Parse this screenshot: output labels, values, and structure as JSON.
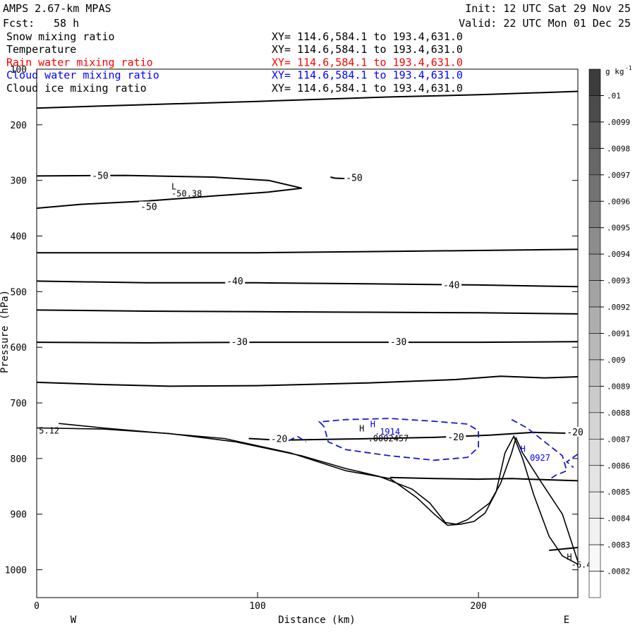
{
  "header": {
    "model": "AMPS 2.67-km MPAS",
    "fcst_label": "Fcst:",
    "fcst_value": "58 h",
    "init": "Init: 12 UTC Sat 29 Nov 25",
    "valid": "Valid: 22 UTC Mon 01 Dec 25"
  },
  "fields": [
    {
      "name": "Snow mixing ratio",
      "xy": "XY= 114.6,584.1 to 193.4,631.0",
      "color": "#000000"
    },
    {
      "name": "Temperature",
      "xy": "XY= 114.6,584.1 to 193.4,631.0",
      "color": "#000000"
    },
    {
      "name": "Rain water mixing ratio",
      "xy": "XY= 114.6,584.1 to 193.4,631.0",
      "color": "#ff0000"
    },
    {
      "name": "Cloud water mixing ratio",
      "xy": "XY= 114.6,584.1 to 193.4,631.0",
      "color": "#0000ff"
    },
    {
      "name": "Cloud ice mixing ratio",
      "xy": "XY= 114.6,584.1 to 193.4,631.0",
      "color": "#000000"
    }
  ],
  "chart_data": {
    "type": "contour",
    "xlabel": "Distance (km)",
    "ylabel": "Pressure (hPa)",
    "xlim": [
      0,
      245
    ],
    "ylim": [
      100,
      1050
    ],
    "x_ticks": [
      0,
      100,
      200
    ],
    "y_ticks": [
      100,
      200,
      300,
      400,
      500,
      600,
      700,
      800,
      900,
      1000
    ],
    "direction_labels": {
      "left": "W",
      "right": "E"
    },
    "temperature_contours": [
      {
        "label": "",
        "points": [
          [
            0,
            170
          ],
          [
            40,
            165
          ],
          [
            100,
            158
          ],
          [
            160,
            150
          ],
          [
            200,
            146
          ],
          [
            245,
            140
          ]
        ]
      },
      {
        "label": "-50",
        "label_at": [
          25,
          292
        ],
        "points": [
          [
            0,
            292
          ],
          [
            40,
            291
          ],
          [
            80,
            294
          ],
          [
            105,
            300
          ],
          [
            120,
            314
          ],
          [
            105,
            321
          ],
          [
            80,
            328
          ],
          [
            50,
            337
          ],
          [
            20,
            343
          ],
          [
            0,
            350
          ]
        ]
      },
      {
        "label": "-50",
        "label_at": [
          47,
          348
        ],
        "points": []
      },
      {
        "label": "-50",
        "label_at": [
          140,
          296
        ],
        "points": [
          [
            133,
            294
          ],
          [
            135,
            296
          ],
          [
            141,
            297
          ],
          [
            148,
            297
          ]
        ]
      },
      {
        "label": "",
        "points": [
          [
            0,
            430
          ],
          [
            50,
            430
          ],
          [
            100,
            430
          ],
          [
            150,
            428
          ],
          [
            200,
            426
          ],
          [
            245,
            424
          ]
        ]
      },
      {
        "label": "-40",
        "label_at": [
          86,
          482
        ],
        "points": [
          [
            0,
            481
          ],
          [
            50,
            484
          ],
          [
            100,
            484
          ],
          [
            150,
            486
          ],
          [
            200,
            488
          ],
          [
            245,
            491
          ]
        ]
      },
      {
        "label": "-40",
        "label_at": [
          184,
          489
        ],
        "points": []
      },
      {
        "label": "",
        "points": [
          [
            0,
            533
          ],
          [
            50,
            535
          ],
          [
            100,
            536
          ],
          [
            150,
            537
          ],
          [
            200,
            538
          ],
          [
            245,
            540
          ]
        ]
      },
      {
        "label": "-30",
        "label_at": [
          88,
          591
        ],
        "points": [
          [
            0,
            591
          ],
          [
            50,
            592
          ],
          [
            100,
            591
          ],
          [
            150,
            591
          ],
          [
            200,
            591
          ],
          [
            245,
            590
          ]
        ]
      },
      {
        "label": "-30",
        "label_at": [
          160,
          591
        ],
        "points": []
      },
      {
        "label": "",
        "points": [
          [
            0,
            663
          ],
          [
            30,
            667
          ],
          [
            60,
            670
          ],
          [
            100,
            669
          ],
          [
            150,
            664
          ],
          [
            190,
            658
          ],
          [
            210,
            652
          ],
          [
            230,
            655
          ],
          [
            245,
            653
          ]
        ]
      },
      {
        "label": "-20",
        "label_at": [
          106,
          765
        ],
        "points": [
          [
            96,
            764
          ],
          [
            110,
            767
          ],
          [
            140,
            765
          ],
          [
            180,
            762
          ],
          [
            205,
            758
          ],
          [
            225,
            753
          ],
          [
            245,
            755
          ]
        ]
      },
      {
        "label": "-20",
        "label_at": [
          186,
          762
        ],
        "points": []
      },
      {
        "label": "-20",
        "label_at": [
          240,
          753
        ],
        "points": []
      },
      {
        "label": "",
        "points": [
          [
            160,
            834
          ],
          [
            180,
            836
          ],
          [
            200,
            837
          ],
          [
            215,
            836
          ],
          [
            230,
            838
          ],
          [
            245,
            840
          ]
        ]
      },
      {
        "label": "",
        "points": [
          [
            232,
            965
          ],
          [
            245,
            960
          ]
        ]
      }
    ],
    "terrain": [
      {
        "name": "surface-pressure-line",
        "points": [
          [
            0,
            745
          ],
          [
            30,
            747
          ],
          [
            60,
            755
          ],
          [
            90,
            770
          ],
          [
            120,
            795
          ],
          [
            140,
            818
          ],
          [
            155,
            832
          ],
          [
            170,
            855
          ],
          [
            178,
            880
          ],
          [
            185,
            915
          ],
          [
            190,
            918
          ],
          [
            195,
            910
          ],
          [
            205,
            880
          ],
          [
            210,
            845
          ],
          [
            215,
            790
          ],
          [
            217,
            763
          ],
          [
            220,
            790
          ],
          [
            228,
            840
          ],
          [
            238,
            900
          ],
          [
            245,
            985
          ]
        ]
      },
      {
        "name": "terrain-ridge-line",
        "points": [
          [
            10,
            737
          ],
          [
            30,
            745
          ],
          [
            85,
            764
          ],
          [
            115,
            790
          ],
          [
            140,
            822
          ],
          [
            160,
            836
          ],
          [
            172,
            870
          ],
          [
            180,
            900
          ],
          [
            186,
            920
          ],
          [
            192,
            918
          ],
          [
            198,
            913
          ],
          [
            203,
            898
          ],
          [
            208,
            860
          ],
          [
            212,
            790
          ],
          [
            216,
            760
          ],
          [
            220,
            800
          ],
          [
            225,
            865
          ],
          [
            232,
            940
          ],
          [
            238,
            975
          ],
          [
            245,
            990
          ]
        ]
      }
    ],
    "cloud_water_contours": [
      {
        "points": [
          [
            130,
            742
          ],
          [
            128,
            734
          ],
          [
            140,
            730
          ],
          [
            160,
            728
          ],
          [
            180,
            733
          ],
          [
            195,
            738
          ],
          [
            200,
            750
          ],
          [
            200,
            780
          ],
          [
            195,
            798
          ],
          [
            180,
            803
          ],
          [
            160,
            795
          ],
          [
            140,
            784
          ],
          [
            132,
            770
          ],
          [
            131,
            755
          ],
          [
            130,
            742
          ]
        ]
      },
      {
        "points": [
          [
            215,
            730
          ],
          [
            222,
            745
          ],
          [
            230,
            770
          ],
          [
            238,
            795
          ],
          [
            240,
            822
          ],
          [
            235,
            830
          ],
          [
            232,
            838
          ]
        ]
      },
      {
        "points": [
          [
            245,
            792
          ],
          [
            240,
            806
          ],
          [
            243,
            816
          ]
        ]
      },
      {
        "points": [
          [
            114,
            768
          ],
          [
            118,
            760
          ],
          [
            122,
            770
          ]
        ]
      }
    ],
    "annotations": [
      {
        "text": "L",
        "at": [
          61,
          316
        ],
        "color": "#000000"
      },
      {
        "text": "-50.38",
        "at": [
          61,
          329
        ],
        "color": "#000000"
      },
      {
        "text": "H",
        "at": [
          146,
          751
        ],
        "color": "#000000"
      },
      {
        "text": ".0002457",
        "at": [
          150,
          769
        ],
        "color": "#000000"
      },
      {
        "text": "H",
        "at": [
          151,
          744
        ],
        "color": "#0000ff"
      },
      {
        "text": ".1914",
        "at": [
          153,
          757
        ],
        "color": "#0000ff"
      },
      {
        "text": "H",
        "at": [
          219,
          788
        ],
        "color": "#0000ff"
      },
      {
        "text": ".0927",
        "at": [
          221,
          804
        ],
        "color": "#0000ff"
      },
      {
        "text": "H",
        "at": [
          240,
          982
        ],
        "color": "#000000"
      },
      {
        "text": "-6.4",
        "at": [
          242,
          996
        ],
        "color": "#000000"
      },
      {
        "text": "5.12",
        "at": [
          1,
          755
        ],
        "color": "#000000"
      }
    ]
  },
  "colorbar": {
    "unit": "g kg",
    "unit_sup": "-1",
    "labels": [
      ".01",
      ".0099",
      ".0098",
      ".0097",
      ".0096",
      ".0095",
      ".0094",
      ".0093",
      ".0092",
      ".0091",
      ".009",
      ".0089",
      ".0088",
      ".0087",
      ".0086",
      ".0085",
      ".0084",
      ".0083",
      ".0082"
    ],
    "gray_levels": [
      60,
      75,
      90,
      103,
      115,
      128,
      140,
      152,
      163,
      174,
      184,
      194,
      203,
      212,
      220,
      228,
      235,
      242,
      248,
      254
    ]
  }
}
